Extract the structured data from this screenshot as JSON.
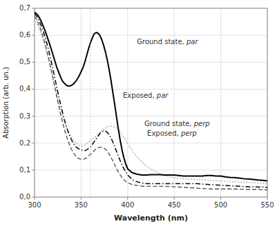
{
  "chart_data": {
    "type": "line",
    "xlabel": "Wavelength (nm)",
    "ylabel": "Absorption (arb. un.)",
    "xlim": [
      300,
      550
    ],
    "ylim": [
      0.0,
      0.7
    ],
    "xticks": [
      300,
      350,
      400,
      450,
      500,
      550
    ],
    "yticks": [
      {
        "value": 0.0,
        "label": "0,0"
      },
      {
        "value": 0.1,
        "label": "0,1"
      },
      {
        "value": 0.2,
        "label": "0,2"
      },
      {
        "value": 0.3,
        "label": "0,3"
      },
      {
        "value": 0.4,
        "label": "0,4"
      },
      {
        "value": 0.5,
        "label": "0,5"
      },
      {
        "value": 0.6,
        "label": "0,6"
      },
      {
        "value": 0.7,
        "label": "0,7"
      }
    ],
    "grid": true,
    "vline_x": 360,
    "annotations": [
      {
        "text": "Ground state, ",
        "italic": "par",
        "x": 410,
        "y": 0.575
      },
      {
        "text": "Exposed, ",
        "italic": "par",
        "x": 395,
        "y": 0.375
      },
      {
        "text": "Ground state, ",
        "italic": "perp",
        "x": 418,
        "y": 0.27
      },
      {
        "text": "Exposed, ",
        "italic": "perp",
        "x": 421,
        "y": 0.235
      }
    ],
    "x": [
      300,
      302,
      304,
      306,
      308,
      310,
      312,
      314,
      316,
      318,
      320,
      322,
      324,
      326,
      328,
      330,
      332,
      334,
      336,
      338,
      340,
      342,
      344,
      346,
      348,
      350,
      352,
      354,
      356,
      358,
      360,
      362,
      364,
      366,
      368,
      370,
      372,
      374,
      376,
      378,
      380,
      382,
      384,
      386,
      388,
      390,
      392,
      394,
      396,
      398,
      400,
      405,
      410,
      415,
      420,
      425,
      430,
      435,
      440,
      445,
      450,
      455,
      460,
      465,
      470,
      475,
      480,
      485,
      490,
      495,
      500,
      505,
      510,
      515,
      520,
      525,
      530,
      535,
      540,
      545,
      550
    ],
    "series": [
      {
        "color": "#aaaaaa",
        "line_style": "dotted",
        "values": [
          0.66,
          0.648,
          0.633,
          0.615,
          0.595,
          0.572,
          0.548,
          0.522,
          0.494,
          0.465,
          0.436,
          0.406,
          0.378,
          0.351,
          0.325,
          0.302,
          0.28,
          0.262,
          0.246,
          0.232,
          0.22,
          0.21,
          0.202,
          0.196,
          0.192,
          0.19,
          0.191,
          0.193,
          0.197,
          0.202,
          0.208,
          0.215,
          0.22,
          0.226,
          0.232,
          0.238,
          0.244,
          0.25,
          0.255,
          0.26,
          0.262,
          0.263,
          0.262,
          0.26,
          0.256,
          0.25,
          0.242,
          0.233,
          0.222,
          0.21,
          0.198,
          0.172,
          0.15,
          0.132,
          0.116,
          0.104,
          0.094,
          0.086,
          0.08,
          0.075,
          0.072,
          0.07,
          0.068,
          0.067,
          0.066,
          0.065,
          0.064,
          0.063,
          0.062,
          0.061,
          0.06,
          0.059,
          0.058,
          0.057,
          0.056,
          0.055,
          0.054,
          0.053,
          0.052,
          0.051,
          0.05
        ]
      },
      {
        "color": "#555555",
        "line_style": "dashed",
        "values": [
          0.67,
          0.66,
          0.645,
          0.628,
          0.608,
          0.585,
          0.56,
          0.532,
          0.502,
          0.47,
          0.438,
          0.405,
          0.37,
          0.338,
          0.307,
          0.278,
          0.252,
          0.228,
          0.208,
          0.19,
          0.175,
          0.163,
          0.153,
          0.146,
          0.142,
          0.14,
          0.14,
          0.142,
          0.146,
          0.152,
          0.158,
          0.165,
          0.172,
          0.178,
          0.182,
          0.185,
          0.185,
          0.182,
          0.178,
          0.17,
          0.16,
          0.148,
          0.134,
          0.12,
          0.106,
          0.093,
          0.082,
          0.072,
          0.064,
          0.058,
          0.053,
          0.046,
          0.043,
          0.041,
          0.04,
          0.04,
          0.04,
          0.04,
          0.04,
          0.039,
          0.038,
          0.037,
          0.036,
          0.035,
          0.034,
          0.033,
          0.032,
          0.031,
          0.03,
          0.03,
          0.03,
          0.03,
          0.03,
          0.03,
          0.029,
          0.029,
          0.028,
          0.028,
          0.028,
          0.027,
          0.027
        ]
      },
      {
        "color": "#000000",
        "line_style": "dashdot",
        "values": [
          0.68,
          0.672,
          0.66,
          0.645,
          0.628,
          0.608,
          0.585,
          0.56,
          0.532,
          0.502,
          0.47,
          0.438,
          0.405,
          0.374,
          0.344,
          0.315,
          0.288,
          0.264,
          0.243,
          0.225,
          0.21,
          0.198,
          0.188,
          0.182,
          0.178,
          0.175,
          0.173,
          0.172,
          0.175,
          0.18,
          0.185,
          0.195,
          0.205,
          0.215,
          0.225,
          0.235,
          0.242,
          0.245,
          0.245,
          0.24,
          0.232,
          0.22,
          0.205,
          0.188,
          0.17,
          0.152,
          0.135,
          0.118,
          0.105,
          0.093,
          0.082,
          0.065,
          0.057,
          0.052,
          0.05,
          0.05,
          0.05,
          0.05,
          0.05,
          0.05,
          0.05,
          0.05,
          0.05,
          0.05,
          0.05,
          0.05,
          0.048,
          0.047,
          0.046,
          0.045,
          0.044,
          0.043,
          0.042,
          0.041,
          0.04,
          0.039,
          0.038,
          0.038,
          0.037,
          0.037,
          0.036
        ]
      },
      {
        "color": "#000000",
        "line_style": "solid",
        "values": [
          0.685,
          0.68,
          0.672,
          0.66,
          0.645,
          0.628,
          0.61,
          0.59,
          0.57,
          0.548,
          0.525,
          0.502,
          0.48,
          0.462,
          0.445,
          0.43,
          0.422,
          0.415,
          0.412,
          0.412,
          0.415,
          0.42,
          0.428,
          0.438,
          0.45,
          0.465,
          0.48,
          0.5,
          0.525,
          0.55,
          0.572,
          0.59,
          0.605,
          0.61,
          0.608,
          0.6,
          0.585,
          0.565,
          0.54,
          0.51,
          0.475,
          0.435,
          0.39,
          0.345,
          0.298,
          0.252,
          0.21,
          0.174,
          0.145,
          0.122,
          0.105,
          0.09,
          0.085,
          0.082,
          0.082,
          0.083,
          0.083,
          0.083,
          0.082,
          0.082,
          0.082,
          0.08,
          0.078,
          0.078,
          0.078,
          0.078,
          0.078,
          0.08,
          0.08,
          0.078,
          0.078,
          0.075,
          0.073,
          0.072,
          0.07,
          0.068,
          0.067,
          0.065,
          0.063,
          0.062,
          0.06
        ]
      }
    ]
  }
}
